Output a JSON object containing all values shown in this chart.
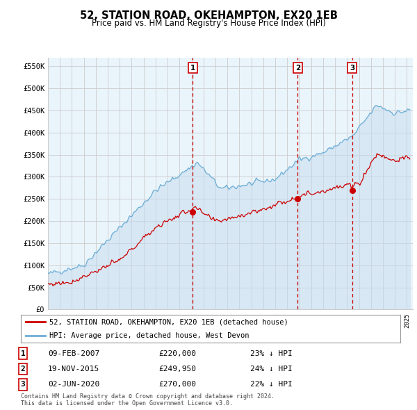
{
  "title": "52, STATION ROAD, OKEHAMPTON, EX20 1EB",
  "subtitle": "Price paid vs. HM Land Registry's House Price Index (HPI)",
  "ylabel_ticks": [
    "£0",
    "£50K",
    "£100K",
    "£150K",
    "£200K",
    "£250K",
    "£300K",
    "£350K",
    "£400K",
    "£450K",
    "£500K",
    "£550K"
  ],
  "ytick_values": [
    0,
    50000,
    100000,
    150000,
    200000,
    250000,
    300000,
    350000,
    400000,
    450000,
    500000,
    550000
  ],
  "ylim": [
    0,
    570000
  ],
  "hpi_color": "#6baed6",
  "hpi_fill_color": "#c6dbef",
  "price_color": "#cc0000",
  "vline_color": "#cc0000",
  "grid_color": "#cccccc",
  "bg_color": "#ffffff",
  "chart_bg_color": "#eaf4fb",
  "legend_label_price": "52, STATION ROAD, OKEHAMPTON, EX20 1EB (detached house)",
  "legend_label_hpi": "HPI: Average price, detached house, West Devon",
  "transactions": [
    {
      "num": 1,
      "date": "09-FEB-2007",
      "price": 220000,
      "pct": "23%",
      "x": 2007.1
    },
    {
      "num": 2,
      "date": "19-NOV-2015",
      "price": 249950,
      "pct": "24%",
      "x": 2015.88
    },
    {
      "num": 3,
      "date": "02-JUN-2020",
      "price": 270000,
      "pct": "22%",
      "x": 2020.42
    }
  ],
  "footer": "Contains HM Land Registry data © Crown copyright and database right 2024.\nThis data is licensed under the Open Government Licence v3.0.",
  "xmin": 1995,
  "xmax": 2025.5
}
